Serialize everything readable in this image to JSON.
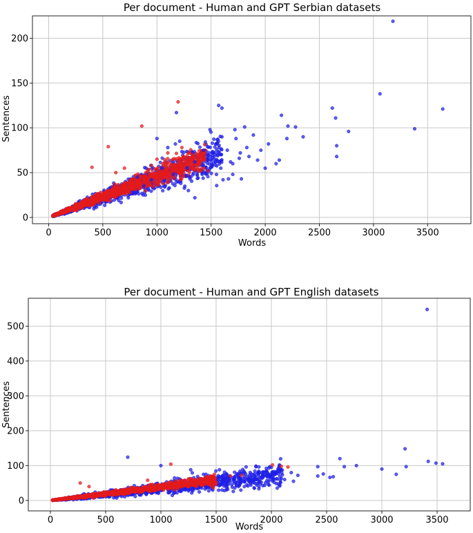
{
  "chart_data": [
    {
      "type": "scatter",
      "title": "Per document - Human and GPT Serbian datasets",
      "xlabel": "Words",
      "ylabel": "Sentences",
      "xlim": [
        -150,
        3900
      ],
      "ylim": [
        -7,
        225
      ],
      "xticks": [
        0,
        500,
        1000,
        1500,
        2000,
        2500,
        3000,
        3500
      ],
      "yticks": [
        0,
        50,
        100,
        150,
        200
      ],
      "grid": true,
      "series": [
        {
          "color": "#1f1fe6",
          "points": [
            [
              3180,
              219
            ],
            [
              3640,
              121
            ],
            [
              3060,
              138
            ],
            [
              3380,
              99
            ],
            [
              2620,
              122
            ],
            [
              2650,
              111
            ],
            [
              2660,
              80
            ],
            [
              2660,
              68
            ],
            [
              2770,
              96
            ],
            [
              2210,
              102
            ],
            [
              2280,
              101
            ],
            [
              2350,
              90
            ],
            [
              2200,
              88
            ],
            [
              2150,
              114
            ],
            [
              2030,
              82
            ],
            [
              2000,
              55
            ],
            [
              2130,
              64
            ],
            [
              2100,
              60
            ],
            [
              1810,
              101
            ],
            [
              1720,
              98
            ],
            [
              1600,
              122
            ],
            [
              1570,
              125
            ],
            [
              1490,
              98
            ],
            [
              1890,
              92
            ],
            [
              1830,
              78
            ],
            [
              1850,
              68
            ],
            [
              1960,
              75
            ],
            [
              1760,
              66
            ],
            [
              1700,
              60
            ],
            [
              1560,
              70
            ],
            [
              1650,
              75
            ],
            [
              1680,
              62
            ],
            [
              1590,
              55
            ],
            [
              1770,
              72
            ],
            [
              1930,
              64
            ],
            [
              1520,
              72
            ],
            [
              1700,
              48
            ],
            [
              1780,
              43
            ],
            [
              1610,
              42
            ],
            [
              1370,
              48
            ],
            [
              1420,
              58
            ],
            [
              1350,
              62
            ],
            [
              1280,
              55
            ],
            [
              1430,
              75
            ],
            [
              1470,
              66
            ],
            [
              1380,
              44
            ],
            [
              1180,
              117
            ],
            [
              1210,
              85
            ],
            [
              1170,
              82
            ],
            [
              1000,
              88
            ],
            [
              900,
              55
            ],
            [
              950,
              42
            ],
            [
              880,
              35
            ],
            [
              820,
              45
            ],
            [
              1150,
              62
            ],
            [
              1100,
              78
            ],
            [
              1290,
              30
            ],
            [
              1350,
              22
            ],
            [
              1600,
              90
            ],
            [
              1730,
              88
            ],
            [
              1480,
              52
            ],
            [
              1550,
              48
            ],
            [
              1660,
              43
            ],
            [
              1150,
              48
            ],
            [
              1050,
              55
            ],
            [
              1220,
              38
            ],
            [
              1300,
              45
            ]
          ]
        },
        {
          "color": "#e31a1c",
          "points": [
            [
              1195,
              129
            ],
            [
              860,
              102
            ],
            [
              550,
              79
            ],
            [
              400,
              56
            ],
            [
              1300,
              72
            ],
            [
              1230,
              78
            ],
            [
              1150,
              65
            ],
            [
              1100,
              72
            ],
            [
              1420,
              68
            ],
            [
              1280,
              60
            ],
            [
              1350,
              55
            ],
            [
              1470,
              52
            ],
            [
              1000,
              65
            ],
            [
              950,
              58
            ],
            [
              1200,
              50
            ],
            [
              1400,
              62
            ],
            [
              700,
              55
            ],
            [
              620,
              50
            ]
          ]
        }
      ],
      "clouds": [
        {
          "color": "#1f1fe6",
          "slope": 0.0445,
          "spread": 0.32,
          "count": 1400,
          "xmin": 40,
          "xmax": 1600
        },
        {
          "color": "#e31a1c",
          "slope": 0.0465,
          "spread": 0.22,
          "count": 1500,
          "xmin": 40,
          "xmax": 1450
        }
      ]
    },
    {
      "type": "scatter",
      "title": "Per document - Human and GPT English datasets",
      "xlabel": "Words",
      "ylabel": "Sentences",
      "xlim": [
        -200,
        3800
      ],
      "ylim": [
        -30,
        580
      ],
      "xticks": [
        0,
        500,
        1000,
        1500,
        2000,
        2500,
        3000,
        3500
      ],
      "yticks": [
        0,
        100,
        200,
        300,
        400,
        500
      ],
      "grid": true,
      "series": [
        {
          "color": "#1f1fe6",
          "points": [
            [
              3410,
              548
            ],
            [
              3210,
              148
            ],
            [
              3420,
              112
            ],
            [
              3490,
              107
            ],
            [
              3550,
              105
            ],
            [
              2620,
              120
            ],
            [
              2770,
              100
            ],
            [
              2660,
              97
            ],
            [
              2560,
              68
            ],
            [
              2530,
              66
            ],
            [
              2470,
              76
            ],
            [
              2420,
              97
            ],
            [
              2420,
              70
            ],
            [
              3000,
              90
            ],
            [
              3130,
              75
            ],
            [
              3220,
              97
            ],
            [
              700,
              124
            ],
            [
              1000,
              100
            ],
            [
              1270,
              88
            ],
            [
              1530,
              88
            ],
            [
              1880,
              80
            ],
            [
              2000,
              95
            ],
            [
              2060,
              90
            ],
            [
              2180,
              80
            ],
            [
              2240,
              72
            ],
            [
              1910,
              65
            ],
            [
              1960,
              70
            ],
            [
              2080,
              85
            ],
            [
              2120,
              60
            ],
            [
              2200,
              55
            ]
          ]
        },
        {
          "color": "#e31a1c",
          "points": [
            [
              1090,
              104
            ],
            [
              2010,
              102
            ],
            [
              2150,
              96
            ],
            [
              2090,
              98
            ],
            [
              1730,
              72
            ],
            [
              1630,
              70
            ],
            [
              270,
              50
            ],
            [
              350,
              40
            ],
            [
              1380,
              60
            ],
            [
              880,
              58
            ],
            [
              1250,
              62
            ]
          ]
        }
      ],
      "clouds": [
        {
          "color": "#1f1fe6",
          "slope": 0.0345,
          "spread": 0.45,
          "count": 1700,
          "xmin": 20,
          "xmax": 2100
        },
        {
          "color": "#e31a1c",
          "slope": 0.0385,
          "spread": 0.25,
          "count": 1500,
          "xmin": 20,
          "xmax": 1500
        }
      ]
    }
  ]
}
